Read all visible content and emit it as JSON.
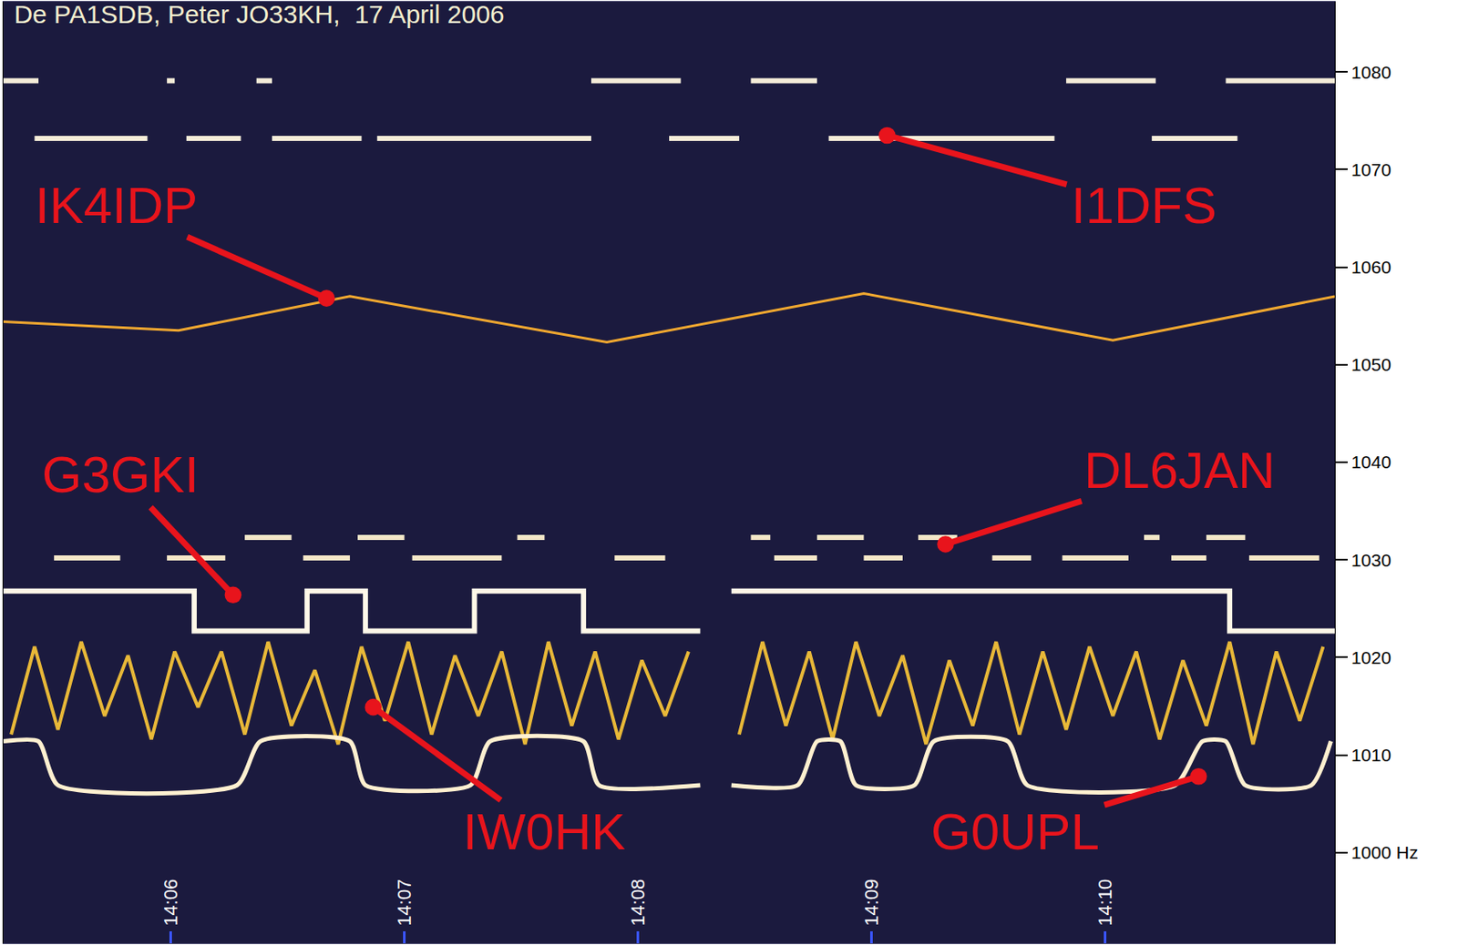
{
  "chart_data": {
    "type": "spectrogram",
    "title": "De PA1SDB, Peter JO33KH,  17 April 2006",
    "xlim": [
      "14:05:17",
      "14:10:59"
    ],
    "xticks": [
      "14:06",
      "14:07",
      "14:08",
      "14:09",
      "14:10"
    ],
    "ylim": [
      990.7,
      1087.2
    ],
    "yticks": [
      {
        "value": 1000,
        "label": "1000 Hz"
      },
      1010,
      1020,
      1030,
      1040,
      1050,
      1060,
      1070,
      1080
    ],
    "grid": false,
    "series": [
      {
        "name": "I1DFS",
        "color": "#f4ecd8",
        "line_style": "solid",
        "label_at": {
          "x": "14:10:10",
          "y": 1066.3
        },
        "points_to": {
          "x": "14:09:04",
          "y": 1073.5
        },
        "x": [
          "14:05:17",
          "14:05:26",
          "14:05:26",
          "14:05:25",
          "14:05:54",
          "14:05:54",
          "14:05:59",
          "14:06:01",
          "14:06:01",
          "14:06:04",
          "14:06:18",
          "14:06:18",
          "14:06:22",
          "14:06:26",
          "14:06:26",
          "14:06:26",
          "14:06:49",
          "14:06:49",
          "14:06:53",
          "14:07:48",
          "14:07:48",
          "14:07:48",
          "14:08:11",
          "14:08:11",
          "14:08:08",
          "14:08:26",
          "14:08:26",
          "14:08:29",
          "14:08:46",
          "14:08:46",
          "14:08:49",
          "14:09:47",
          "14:09:47",
          "14:09:50",
          "14:10:13",
          "14:10:13",
          "14:10:12",
          "14:10:34",
          "14:10:34",
          "14:10:31",
          "14:10:59"
        ],
        "values": [
          1079.1,
          1079.1,
          null,
          1073.2,
          1073.2,
          null,
          1079.1,
          1079.1,
          null,
          1073.2,
          1073.2,
          null,
          1079.1,
          1079.1,
          null,
          1073.2,
          1073.2,
          null,
          1073.2,
          1073.2,
          null,
          1079.1,
          1079.1,
          null,
          1073.2,
          1073.2,
          null,
          1079.1,
          1079.1,
          null,
          1073.2,
          1073.2,
          null,
          1079.1,
          1079.1,
          null,
          1073.2,
          1073.2,
          null,
          1079.1,
          1079.1
        ]
      },
      {
        "name": "IK4IDP",
        "color": "#f0a830",
        "line_style": "thin",
        "label_at": {
          "x": "14:05:46",
          "y": 1066.3
        },
        "points_to": {
          "x": "14:06:40",
          "y": 1056.8
        },
        "x": [
          "14:05:17",
          "14:06:02",
          "14:06:46",
          "14:07:52",
          "14:08:58",
          "14:10:02",
          "14:10:59"
        ],
        "values": [
          1054.4,
          1053.5,
          1057.0,
          1052.3,
          1057.3,
          1052.5,
          1057.0
        ]
      },
      {
        "name": "DL6JAN",
        "color": "#f6e8c8",
        "line_style": "solid",
        "label_at": {
          "x": "14:10:19",
          "y": 1039.2
        },
        "points_to": {
          "x": "14:09:19",
          "y": 1031.6
        },
        "x": [
          "14:05:30",
          "14:05:47",
          "14:05:47",
          "14:05:59",
          "14:06:14",
          "14:06:14",
          "14:06:19",
          "14:06:31",
          "14:06:31",
          "14:06:34",
          "14:06:46",
          "14:06:46",
          "14:06:48",
          "14:07:00",
          "14:07:00",
          "14:07:02",
          "14:07:25",
          "14:07:25",
          "14:07:29",
          "14:07:36",
          "14:07:36",
          "14:07:54",
          "14:08:07",
          "14:08:07",
          "14:08:29",
          "14:08:34",
          "14:08:34",
          "14:08:35",
          "14:08:46",
          "14:08:46",
          "14:08:46",
          "14:08:58",
          "14:08:58",
          "14:08:58",
          "14:09:08",
          "14:09:08",
          "14:09:12",
          "14:09:22",
          "14:09:22",
          "14:09:31",
          "14:09:41",
          "14:09:41",
          "14:09:49",
          "14:10:06",
          "14:10:06",
          "14:10:10",
          "14:10:14",
          "14:10:14",
          "14:10:17",
          "14:10:26",
          "14:10:26",
          "14:10:26",
          "14:10:36",
          "14:10:36",
          "14:10:37",
          "14:10:55"
        ],
        "values": [
          1030.2,
          1030.2,
          null,
          1030.2,
          1030.2,
          null,
          1032.3,
          1032.3,
          null,
          1030.2,
          1030.2,
          null,
          1032.3,
          1032.3,
          null,
          1030.2,
          1030.2,
          null,
          1032.3,
          1032.3,
          null,
          1030.2,
          1030.2,
          null,
          1032.3,
          1032.3,
          null,
          1030.2,
          1030.2,
          null,
          1032.3,
          1032.3,
          null,
          1030.2,
          1030.2,
          null,
          1032.3,
          1032.3,
          null,
          1030.2,
          1030.2,
          null,
          1030.2,
          1030.2,
          null,
          1032.3,
          1032.3,
          null,
          1030.2,
          1030.2,
          null,
          1032.3,
          1032.3,
          null,
          1030.2,
          1030.2
        ]
      },
      {
        "name": "G3GKI",
        "color": "#fff8e8",
        "line_style": "solid",
        "label_at": {
          "x": "14:05:47",
          "y": 1038.7
        },
        "points_to": {
          "x": "14:06:16",
          "y": 1026.4
        },
        "x": [
          "14:05:17",
          "14:06:06",
          "14:06:06",
          "14:06:35",
          "14:06:35",
          "14:06:50",
          "14:06:50",
          "14:07:18",
          "14:07:18",
          "14:07:46",
          "14:07:46",
          "14:08:16",
          "14:08:16",
          "14:08:24",
          "14:10:32",
          "14:10:32",
          "14:10:59"
        ],
        "values": [
          1026.8,
          1026.8,
          1022.7,
          1022.7,
          1026.8,
          1026.8,
          1022.7,
          1022.7,
          1026.8,
          1026.8,
          1022.7,
          1022.7,
          null,
          1026.8,
          1026.8,
          1022.7,
          1022.7
        ]
      },
      {
        "name": "IW0HK",
        "color": "#e8b838",
        "line_style": "medium",
        "label_at": {
          "x": "14:07:36",
          "y": 1002.1
        },
        "points_to": {
          "x": "14:06:52",
          "y": 1014.9
        },
        "x": [
          "14:05:19",
          "14:05:25",
          "14:05:31",
          "14:05:37",
          "14:05:43",
          "14:05:49",
          "14:05:55",
          "14:06:01",
          "14:06:07",
          "14:06:13",
          "14:06:19",
          "14:06:25",
          "14:06:31",
          "14:06:37",
          "14:06:43",
          "14:06:49",
          "14:06:55",
          "14:07:01",
          "14:07:07",
          "14:07:13",
          "14:07:19",
          "14:07:25",
          "14:07:31",
          "14:07:37",
          "14:07:43",
          "14:07:49",
          "14:07:55",
          "14:08:01",
          "14:08:07",
          "14:08:13",
          "14:08:13",
          "14:08:26",
          "14:08:32",
          "14:08:38",
          "14:08:44",
          "14:08:50",
          "14:08:56",
          "14:09:02",
          "14:09:08",
          "14:09:14",
          "14:09:20",
          "14:09:26",
          "14:09:32",
          "14:09:38",
          "14:09:44",
          "14:09:50",
          "14:09:56",
          "14:10:02",
          "14:10:08",
          "14:10:14",
          "14:10:20",
          "14:10:26",
          "14:10:32",
          "14:10:38",
          "14:10:44",
          "14:10:50",
          "14:10:56"
        ],
        "values": [
          1012.1,
          1021.1,
          1012.6,
          1021.6,
          1014.0,
          1020.2,
          1011.6,
          1020.6,
          1014.9,
          1020.6,
          1012.1,
          1021.6,
          1013.0,
          1018.7,
          1011.1,
          1021.1,
          1013.5,
          1021.6,
          1012.1,
          1020.2,
          1014.0,
          1020.6,
          1011.1,
          1021.6,
          1013.0,
          1020.6,
          1011.6,
          1019.7,
          1014.0,
          1020.6,
          null,
          1012.1,
          1021.6,
          1013.0,
          1020.6,
          1011.6,
          1021.6,
          1014.0,
          1020.2,
          1011.1,
          1019.7,
          1013.0,
          1021.6,
          1012.1,
          1020.6,
          1012.6,
          1021.1,
          1014.0,
          1020.6,
          1011.6,
          1019.7,
          1013.0,
          1021.6,
          1011.1,
          1020.6,
          1013.5,
          1021.1
        ]
      },
      {
        "name": "G0UPL",
        "color": "#fff0d0",
        "line_style": "rounded",
        "label_at": {
          "x": "14:09:37",
          "y": 1002.1
        },
        "points_to": {
          "x": "14:10:24",
          "y": 1007.8
        },
        "x": [
          "14:05:17",
          "14:05:26",
          "14:05:31",
          "14:06:17",
          "14:06:23",
          "14:06:46",
          "14:06:50",
          "14:07:17",
          "14:07:22",
          "14:07:46",
          "14:07:50",
          "14:08:16",
          "14:08:16",
          "14:08:24",
          "14:08:41",
          "14:08:46",
          "14:08:52",
          "14:08:56",
          "14:09:11",
          "14:09:16",
          "14:09:35",
          "14:09:40",
          "14:10:18",
          "14:10:25",
          "14:10:31",
          "14:10:36",
          "14:10:53",
          "14:10:58"
        ],
        "values": [
          1011.4,
          1011.4,
          1006.9,
          1006.9,
          1011.4,
          1011.4,
          1006.9,
          1006.9,
          1011.4,
          1011.4,
          1006.9,
          1006.9,
          null,
          1006.9,
          1006.9,
          1011.4,
          1011.4,
          1006.9,
          1006.9,
          1011.4,
          1011.4,
          1006.9,
          1006.9,
          1011.4,
          1011.4,
          1006.9,
          1006.9,
          1011.4
        ]
      }
    ]
  }
}
